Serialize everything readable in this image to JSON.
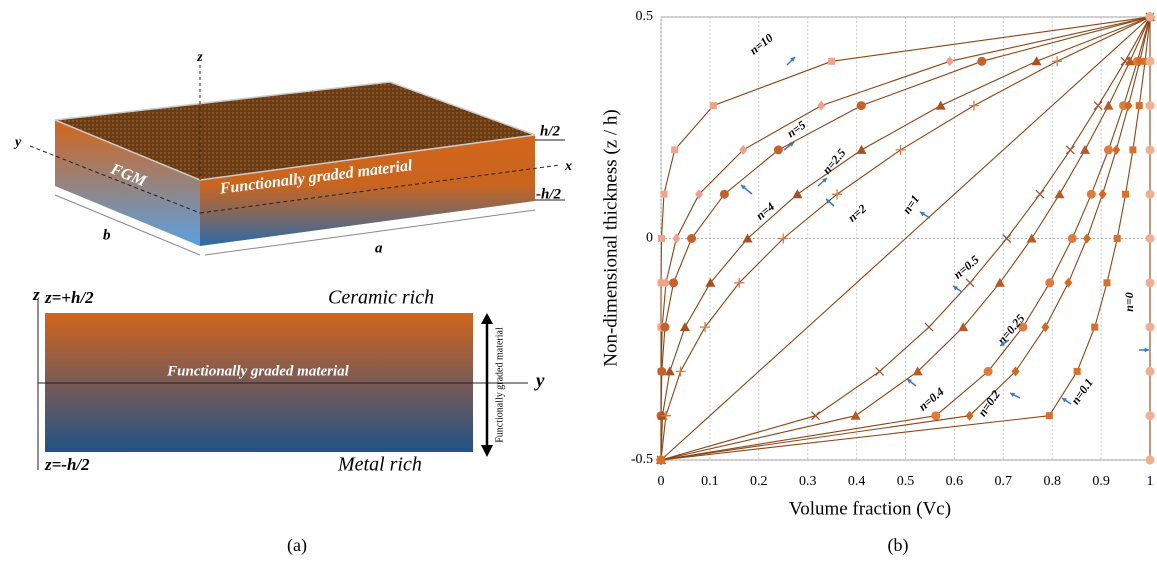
{
  "panel_a": {
    "plate": {
      "z_axis": "z",
      "y_axis": "y",
      "x_axis": "x",
      "fgm": "FGM",
      "material": "Functionally graded material",
      "top": "h/2",
      "bottom": "-h/2",
      "width": "b",
      "length": "a"
    },
    "section": {
      "z_axis": "z",
      "top_coord": "z=+h/2",
      "top_side": "Ceramic rich",
      "material": "Functionally graded material",
      "y_axis": "y",
      "arrow_label": "Functionally graded material",
      "bottom_coord": "z=-h/2",
      "bottom_side": "Metal rich"
    },
    "caption": "(a)"
  },
  "chart_data": {
    "type": "line",
    "caption": "(b)",
    "xlabel": "Volume fraction (Vc)",
    "ylabel": "Non-dimensional thickness (z / h)",
    "xlim": [
      0,
      1
    ],
    "xticks": [
      0,
      0.1,
      0.2,
      0.3,
      0.4,
      0.5,
      0.6,
      0.7,
      0.8,
      0.9,
      1
    ],
    "ylim": [
      -0.5,
      0.5
    ],
    "yticks": [
      -0.5,
      0,
      0.5
    ],
    "grid": true,
    "line_color": "#8b4513",
    "y": [
      -0.5,
      -0.4,
      -0.3,
      -0.2,
      -0.1,
      0,
      0.1,
      0.2,
      0.3,
      0.4,
      0.5
    ],
    "series": [
      {
        "name": "n=10",
        "marker": "square",
        "color": "#f2a38a",
        "x": [
          0,
          0,
          0,
          0,
          0.0001,
          0.001,
          0.006,
          0.028,
          0.107,
          0.349,
          1
        ]
      },
      {
        "name": "n=5",
        "marker": "diamond",
        "color": "#f0a090",
        "x": [
          0,
          0,
          0.0003,
          0.0024,
          0.0102,
          0.0313,
          0.0778,
          0.1681,
          0.3277,
          0.5905,
          1
        ]
      },
      {
        "name": "n=4",
        "marker": "circle",
        "color": "#c8602a",
        "x": [
          0,
          0.0001,
          0.0016,
          0.0081,
          0.0256,
          0.0625,
          0.1296,
          0.2401,
          0.4096,
          0.6561,
          1
        ]
      },
      {
        "name": "n=2.5",
        "marker": "triangle",
        "color": "#a8501e",
        "x": [
          0,
          0.003,
          0.018,
          0.049,
          0.101,
          0.177,
          0.279,
          0.41,
          0.572,
          0.768,
          1
        ]
      },
      {
        "name": "n=2",
        "marker": "plus",
        "color": "#d87a40",
        "x": [
          0,
          0.01,
          0.04,
          0.09,
          0.16,
          0.25,
          0.36,
          0.49,
          0.64,
          0.81,
          1
        ]
      },
      {
        "name": "n=1",
        "marker": "none",
        "color": "#8b4513",
        "x": [
          0,
          0.1,
          0.2,
          0.3,
          0.4,
          0.5,
          0.6,
          0.7,
          0.8,
          0.9,
          1
        ]
      },
      {
        "name": "n=0.5",
        "marker": "x",
        "color": "#a0522d",
        "x": [
          0,
          0.316,
          0.447,
          0.548,
          0.632,
          0.707,
          0.775,
          0.837,
          0.894,
          0.949,
          1
        ]
      },
      {
        "name": "n=0.4",
        "marker": "triangle",
        "color": "#b85a24",
        "x": [
          0,
          0.398,
          0.525,
          0.618,
          0.693,
          0.758,
          0.815,
          0.867,
          0.915,
          0.959,
          1
        ]
      },
      {
        "name": "n=0.25",
        "marker": "circle",
        "color": "#e07a3e",
        "x": [
          0,
          0.562,
          0.669,
          0.74,
          0.795,
          0.841,
          0.88,
          0.915,
          0.946,
          0.974,
          1
        ]
      },
      {
        "name": "n=0.2",
        "marker": "diamond",
        "color": "#d2691e",
        "x": [
          0,
          0.631,
          0.725,
          0.786,
          0.833,
          0.871,
          0.903,
          0.931,
          0.956,
          0.979,
          1
        ]
      },
      {
        "name": "n=0.1",
        "marker": "square",
        "color": "#d9702a",
        "x": [
          0,
          0.794,
          0.851,
          0.887,
          0.912,
          0.933,
          0.95,
          0.965,
          0.978,
          0.99,
          1
        ]
      },
      {
        "name": "n=0",
        "marker": "circle",
        "color": "#f0b090",
        "x": [
          1,
          1,
          1,
          1,
          1,
          1,
          1,
          1,
          1,
          1,
          1
        ]
      }
    ]
  }
}
